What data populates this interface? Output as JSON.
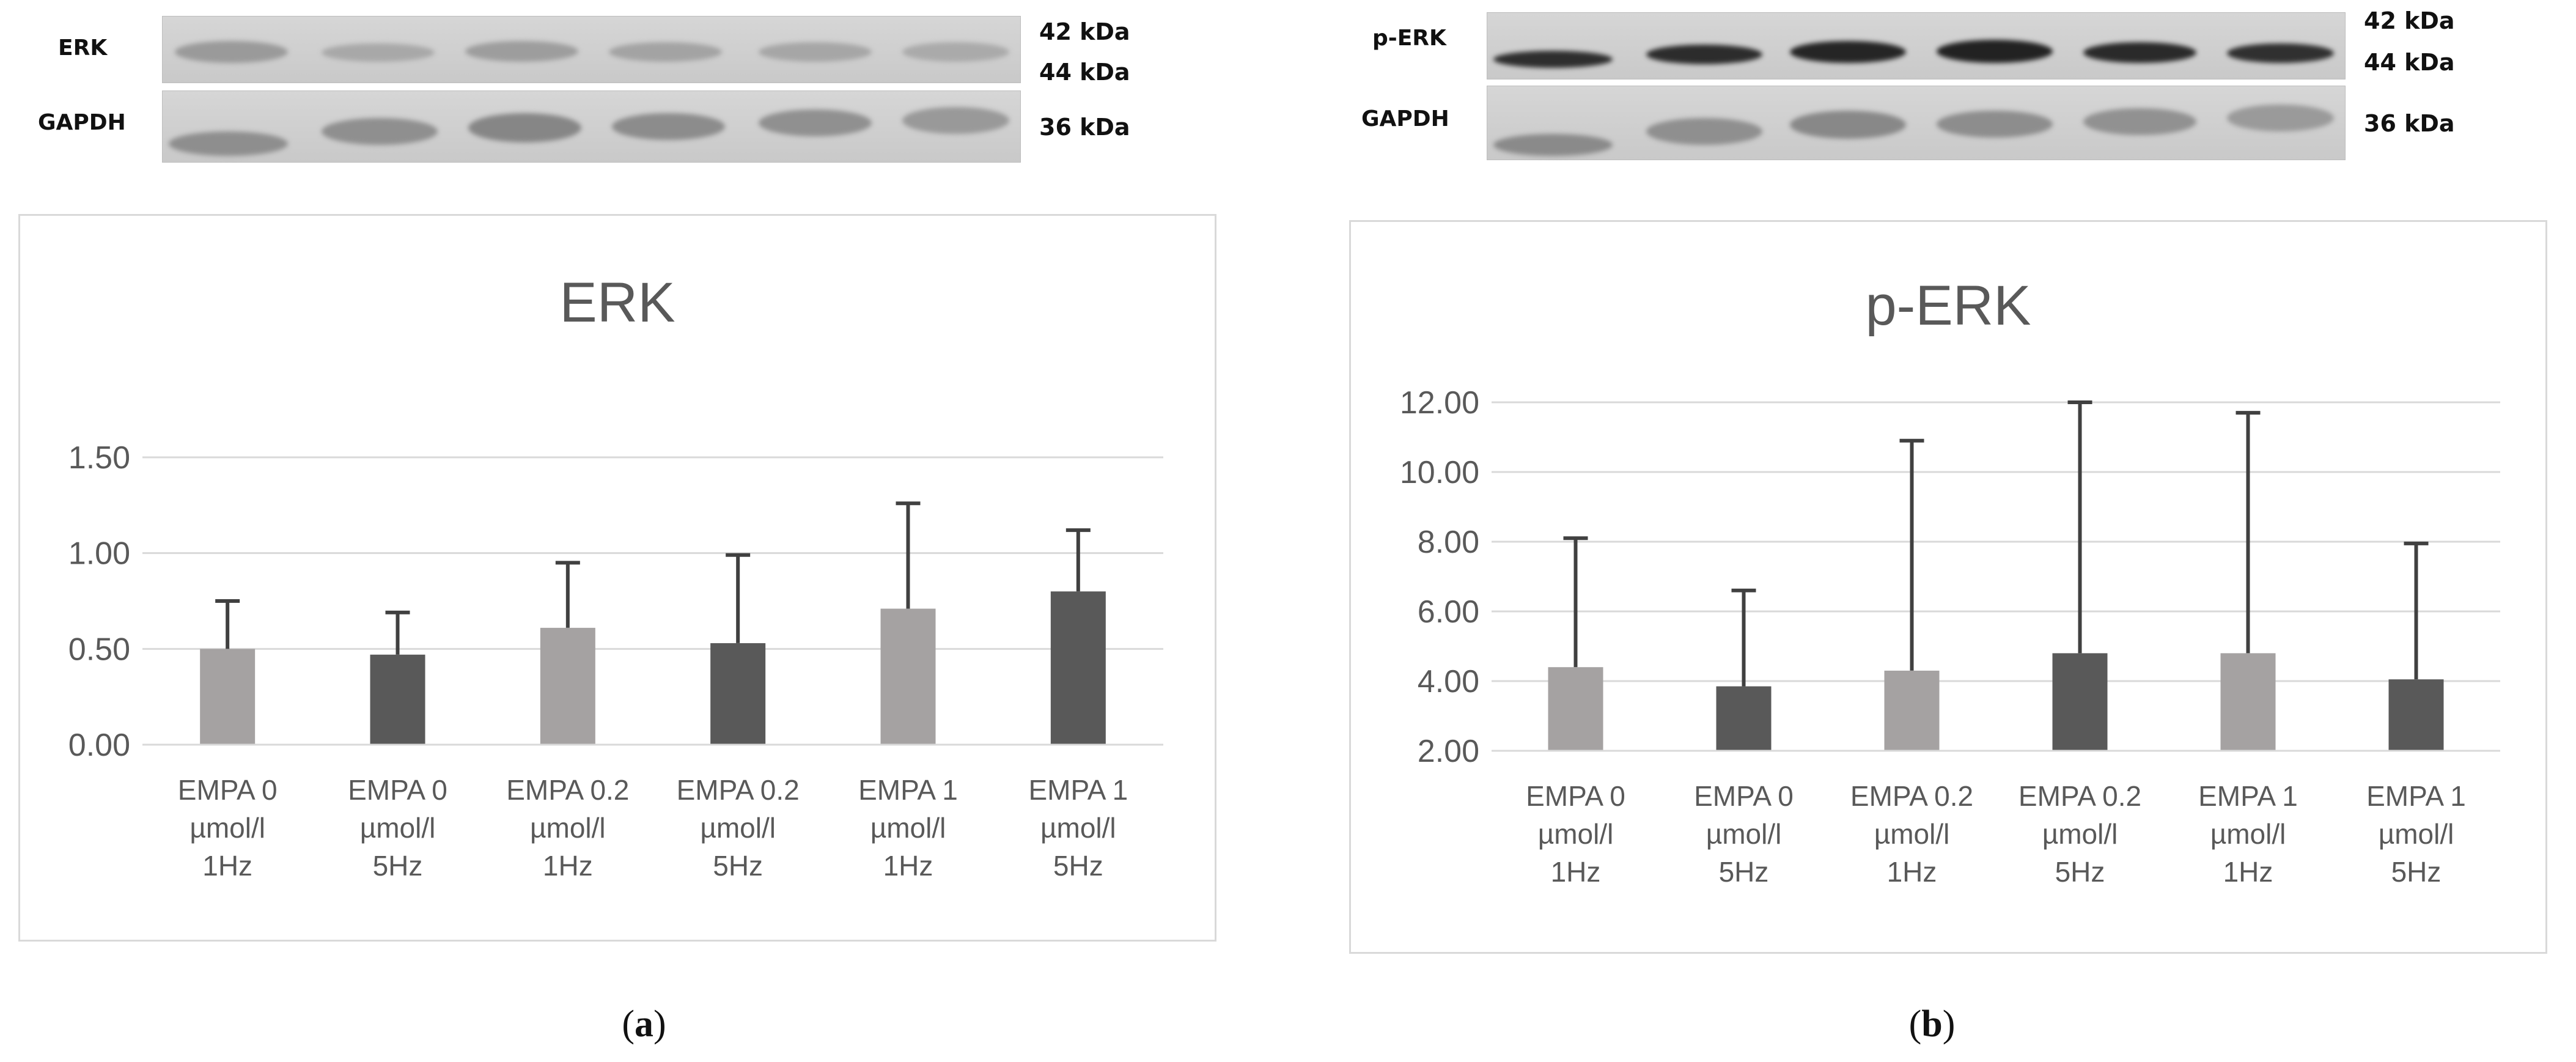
{
  "panels": [
    {
      "id": "a",
      "caption_open": "(",
      "caption_letter": "a",
      "caption_close": ")",
      "blot": {
        "rows": [
          {
            "label": "ERK",
            "kda": [
              "42 kDa",
              "44 kDa"
            ]
          },
          {
            "label": "GAPDH",
            "kda": [
              "36 kDa"
            ]
          }
        ]
      },
      "chart_data": {
        "type": "bar",
        "title": "ERK",
        "xlabel": "",
        "ylabel": "",
        "categories": [
          [
            "EMPA 0",
            "µmol/l",
            "1Hz"
          ],
          [
            "EMPA 0",
            "µmol/l",
            "5Hz"
          ],
          [
            "EMPA 0.2",
            "µmol/l",
            "1Hz"
          ],
          [
            "EMPA 0.2",
            "µmol/l",
            "5Hz"
          ],
          [
            "EMPA 1",
            "µmol/l",
            "1Hz"
          ],
          [
            "EMPA 1",
            "µmol/l",
            "5Hz"
          ]
        ],
        "values": [
          0.5,
          0.47,
          0.61,
          0.53,
          0.71,
          0.8
        ],
        "error_upper": [
          0.75,
          0.69,
          0.95,
          0.99,
          1.26,
          1.12
        ],
        "bar_colors": [
          "#a5a2a2",
          "#595959",
          "#a5a2a2",
          "#595959",
          "#a5a2a2",
          "#595959"
        ],
        "ylim": [
          0,
          1.5
        ],
        "yticks": [
          "0.00",
          "0.50",
          "1.00",
          "1.50"
        ],
        "ytick_values": [
          0,
          0.5,
          1.0,
          1.5
        ],
        "grid": true,
        "legend": "none"
      }
    },
    {
      "id": "b",
      "caption_open": "(",
      "caption_letter": "b",
      "caption_close": ")",
      "blot": {
        "rows": [
          {
            "label": "p-ERK",
            "kda": [
              "42 kDa",
              "44 kDa"
            ]
          },
          {
            "label": "GAPDH",
            "kda": [
              "36 kDa"
            ]
          }
        ]
      },
      "chart_data": {
        "type": "bar",
        "title": "p-ERK",
        "xlabel": "",
        "ylabel": "",
        "categories": [
          [
            "EMPA 0",
            "µmol/l",
            "1Hz"
          ],
          [
            "EMPA 0",
            "µmol/l",
            "5Hz"
          ],
          [
            "EMPA 0.2",
            "µmol/l",
            "1Hz"
          ],
          [
            "EMPA 0.2",
            "µmol/l",
            "5Hz"
          ],
          [
            "EMPA 1",
            "µmol/l",
            "1Hz"
          ],
          [
            "EMPA 1",
            "µmol/l",
            "5Hz"
          ]
        ],
        "values": [
          4.4,
          3.85,
          4.3,
          4.8,
          4.8,
          4.05
        ],
        "error_upper": [
          8.1,
          6.6,
          10.9,
          12.0,
          11.7,
          7.95
        ],
        "bar_colors": [
          "#a5a2a2",
          "#595959",
          "#a5a2a2",
          "#595959",
          "#a5a2a2",
          "#595959"
        ],
        "ylim": [
          2,
          12
        ],
        "yticks": [
          "2.00",
          "4.00",
          "6.00",
          "8.00",
          "10.00",
          "12.00"
        ],
        "ytick_values": [
          2,
          4,
          6,
          8,
          10,
          12
        ],
        "grid": true,
        "legend": "none"
      }
    }
  ]
}
